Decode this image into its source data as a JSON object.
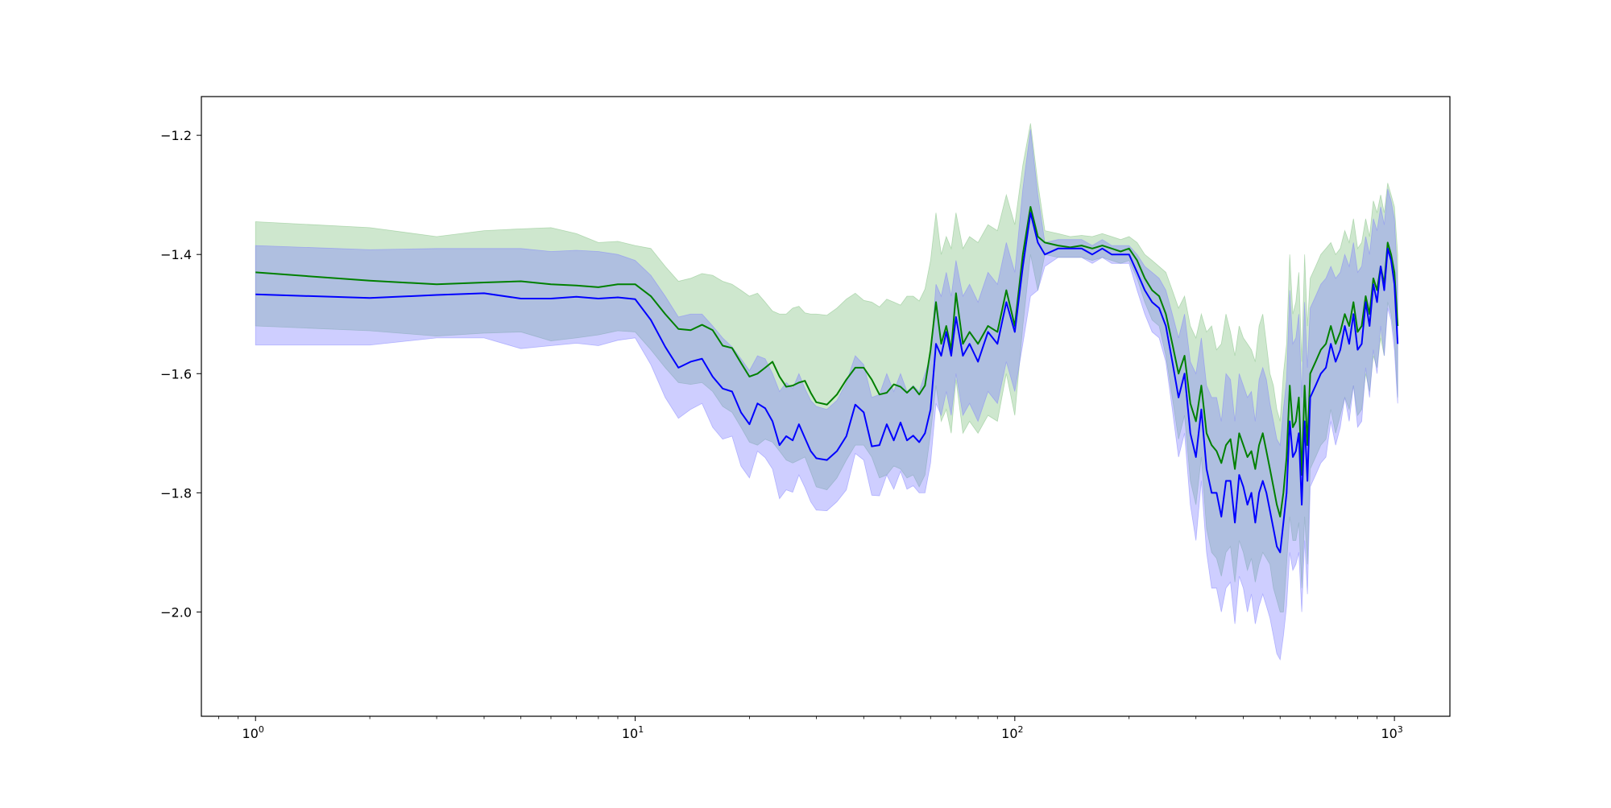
{
  "chart_data": {
    "type": "line",
    "title": "",
    "xlabel": "",
    "ylabel": "",
    "xscale": "log",
    "xlim": [
      0.72,
      1400
    ],
    "ylim": [
      -2.175,
      -1.135
    ],
    "grid": false,
    "legend": "none",
    "x_ticks": [
      {
        "value": 1,
        "base": "10",
        "exp": "0"
      },
      {
        "value": 10,
        "base": "10",
        "exp": "1"
      },
      {
        "value": 100,
        "base": "10",
        "exp": "2"
      },
      {
        "value": 1000,
        "base": "10",
        "exp": "3"
      }
    ],
    "y_ticks": [
      {
        "value": -2.0,
        "label": "−2.0"
      },
      {
        "value": -1.8,
        "label": "−1.8"
      },
      {
        "value": -1.6,
        "label": "−1.6"
      },
      {
        "value": -1.4,
        "label": "−1.4"
      },
      {
        "value": -1.2,
        "label": "−1.2"
      }
    ],
    "series": [
      {
        "color": "#008000",
        "band_color": "#7fbf7f",
        "band_opacity": 0.38,
        "x": [
          1,
          2,
          3,
          4,
          5,
          6,
          7,
          8,
          9,
          10,
          11,
          12,
          13,
          14,
          15,
          16,
          17,
          18,
          19,
          20,
          21,
          22,
          23,
          24,
          25,
          26,
          27,
          28,
          29,
          30,
          32,
          34,
          36,
          38,
          40,
          42,
          44,
          46,
          48,
          50,
          52,
          54,
          56,
          58,
          60,
          62,
          64,
          66,
          68,
          70,
          73,
          76,
          80,
          85,
          90,
          95,
          100,
          105,
          110,
          115,
          120,
          130,
          140,
          150,
          160,
          170,
          180,
          190,
          200,
          210,
          220,
          230,
          240,
          250,
          260,
          270,
          280,
          290,
          300,
          310,
          320,
          330,
          340,
          350,
          360,
          370,
          380,
          390,
          400,
          410,
          420,
          430,
          440,
          450,
          460,
          470,
          480,
          490,
          500,
          510,
          520,
          530,
          540,
          550,
          560,
          570,
          580,
          590,
          600,
          620,
          640,
          660,
          680,
          700,
          720,
          740,
          760,
          780,
          800,
          820,
          840,
          860,
          880,
          900,
          920,
          940,
          960,
          980,
          1000,
          1020
        ],
        "y": [
          -1.43,
          -1.444,
          -1.45,
          -1.447,
          -1.445,
          -1.45,
          -1.452,
          -1.455,
          -1.45,
          -1.45,
          -1.47,
          -1.5,
          -1.525,
          -1.527,
          -1.518,
          -1.527,
          -1.553,
          -1.557,
          -1.582,
          -1.605,
          -1.6,
          -1.59,
          -1.58,
          -1.605,
          -1.622,
          -1.62,
          -1.615,
          -1.612,
          -1.632,
          -1.648,
          -1.652,
          -1.635,
          -1.61,
          -1.59,
          -1.59,
          -1.61,
          -1.635,
          -1.632,
          -1.618,
          -1.622,
          -1.632,
          -1.622,
          -1.635,
          -1.62,
          -1.56,
          -1.48,
          -1.55,
          -1.52,
          -1.56,
          -1.465,
          -1.55,
          -1.53,
          -1.55,
          -1.52,
          -1.53,
          -1.46,
          -1.52,
          -1.4,
          -1.32,
          -1.37,
          -1.38,
          -1.385,
          -1.388,
          -1.385,
          -1.39,
          -1.385,
          -1.39,
          -1.395,
          -1.39,
          -1.41,
          -1.44,
          -1.46,
          -1.47,
          -1.5,
          -1.55,
          -1.6,
          -1.57,
          -1.65,
          -1.68,
          -1.62,
          -1.7,
          -1.72,
          -1.73,
          -1.75,
          -1.72,
          -1.71,
          -1.76,
          -1.7,
          -1.72,
          -1.74,
          -1.73,
          -1.76,
          -1.72,
          -1.7,
          -1.73,
          -1.76,
          -1.79,
          -1.82,
          -1.84,
          -1.8,
          -1.74,
          -1.62,
          -1.69,
          -1.68,
          -1.64,
          -1.77,
          -1.62,
          -1.72,
          -1.6,
          -1.58,
          -1.56,
          -1.55,
          -1.52,
          -1.55,
          -1.53,
          -1.5,
          -1.52,
          -1.48,
          -1.53,
          -1.52,
          -1.47,
          -1.5,
          -1.44,
          -1.46,
          -1.42,
          -1.45,
          -1.38,
          -1.4,
          -1.43,
          -1.52
        ],
        "upper": [
          -1.345,
          -1.355,
          -1.37,
          -1.36,
          -1.357,
          -1.355,
          -1.365,
          -1.38,
          -1.378,
          -1.385,
          -1.39,
          -1.42,
          -1.445,
          -1.44,
          -1.432,
          -1.435,
          -1.445,
          -1.45,
          -1.46,
          -1.47,
          -1.465,
          -1.48,
          -1.495,
          -1.5,
          -1.5,
          -1.49,
          -1.487,
          -1.498,
          -1.5,
          -1.5,
          -1.502,
          -1.49,
          -1.475,
          -1.465,
          -1.477,
          -1.48,
          -1.488,
          -1.475,
          -1.48,
          -1.485,
          -1.47,
          -1.47,
          -1.478,
          -1.458,
          -1.41,
          -1.33,
          -1.4,
          -1.37,
          -1.39,
          -1.33,
          -1.39,
          -1.37,
          -1.38,
          -1.35,
          -1.36,
          -1.3,
          -1.35,
          -1.25,
          -1.18,
          -1.28,
          -1.36,
          -1.365,
          -1.37,
          -1.368,
          -1.37,
          -1.365,
          -1.37,
          -1.375,
          -1.37,
          -1.38,
          -1.4,
          -1.41,
          -1.42,
          -1.43,
          -1.46,
          -1.49,
          -1.47,
          -1.52,
          -1.54,
          -1.5,
          -1.53,
          -1.52,
          -1.56,
          -1.55,
          -1.5,
          -1.53,
          -1.57,
          -1.52,
          -1.54,
          -1.55,
          -1.56,
          -1.58,
          -1.52,
          -1.5,
          -1.55,
          -1.6,
          -1.62,
          -1.66,
          -1.68,
          -1.6,
          -1.55,
          -1.4,
          -1.5,
          -1.48,
          -1.43,
          -1.58,
          -1.4,
          -1.52,
          -1.44,
          -1.42,
          -1.4,
          -1.39,
          -1.38,
          -1.4,
          -1.39,
          -1.36,
          -1.38,
          -1.34,
          -1.39,
          -1.38,
          -1.34,
          -1.37,
          -1.31,
          -1.33,
          -1.3,
          -1.33,
          -1.28,
          -1.3,
          -1.32,
          -1.4
        ],
        "lower": [
          -1.52,
          -1.528,
          -1.537,
          -1.532,
          -1.53,
          -1.545,
          -1.54,
          -1.535,
          -1.528,
          -1.53,
          -1.56,
          -1.59,
          -1.615,
          -1.618,
          -1.615,
          -1.63,
          -1.655,
          -1.665,
          -1.69,
          -1.715,
          -1.72,
          -1.71,
          -1.715,
          -1.73,
          -1.745,
          -1.75,
          -1.745,
          -1.74,
          -1.765,
          -1.79,
          -1.795,
          -1.775,
          -1.745,
          -1.72,
          -1.72,
          -1.74,
          -1.775,
          -1.77,
          -1.755,
          -1.76,
          -1.775,
          -1.77,
          -1.79,
          -1.77,
          -1.7,
          -1.62,
          -1.68,
          -1.66,
          -1.7,
          -1.61,
          -1.7,
          -1.68,
          -1.7,
          -1.67,
          -1.68,
          -1.6,
          -1.67,
          -1.52,
          -1.4,
          -1.46,
          -1.4,
          -1.405,
          -1.405,
          -1.405,
          -1.41,
          -1.405,
          -1.41,
          -1.415,
          -1.41,
          -1.44,
          -1.48,
          -1.51,
          -1.52,
          -1.57,
          -1.64,
          -1.71,
          -1.67,
          -1.78,
          -1.82,
          -1.74,
          -1.86,
          -1.9,
          -1.91,
          -1.94,
          -1.9,
          -1.89,
          -1.95,
          -1.88,
          -1.9,
          -1.93,
          -1.91,
          -1.95,
          -1.92,
          -1.9,
          -1.91,
          -1.92,
          -1.96,
          -1.98,
          -2.0,
          -2.0,
          -1.92,
          -1.84,
          -1.88,
          -1.88,
          -1.85,
          -1.96,
          -1.84,
          -1.92,
          -1.76,
          -1.74,
          -1.72,
          -1.71,
          -1.66,
          -1.7,
          -1.67,
          -1.64,
          -1.66,
          -1.62,
          -1.67,
          -1.66,
          -1.6,
          -1.63,
          -1.57,
          -1.59,
          -1.54,
          -1.57,
          -1.48,
          -1.5,
          -1.54,
          -1.64
        ]
      },
      {
        "color": "#0000ff",
        "band_color": "#7f7fff",
        "band_opacity": 0.38,
        "x": [
          1,
          2,
          3,
          4,
          5,
          6,
          7,
          8,
          9,
          10,
          11,
          12,
          13,
          14,
          15,
          16,
          17,
          18,
          19,
          20,
          21,
          22,
          23,
          24,
          25,
          26,
          27,
          28,
          29,
          30,
          32,
          34,
          36,
          38,
          40,
          42,
          44,
          46,
          48,
          50,
          52,
          54,
          56,
          58,
          60,
          62,
          64,
          66,
          68,
          70,
          73,
          76,
          80,
          85,
          90,
          95,
          100,
          105,
          110,
          115,
          120,
          130,
          140,
          150,
          160,
          170,
          180,
          190,
          200,
          210,
          220,
          230,
          240,
          250,
          260,
          270,
          280,
          290,
          300,
          310,
          320,
          330,
          340,
          350,
          360,
          370,
          380,
          390,
          400,
          410,
          420,
          430,
          440,
          450,
          460,
          470,
          480,
          490,
          500,
          510,
          520,
          530,
          540,
          550,
          560,
          570,
          580,
          590,
          600,
          620,
          640,
          660,
          680,
          700,
          720,
          740,
          760,
          780,
          800,
          820,
          840,
          860,
          880,
          900,
          920,
          940,
          960,
          980,
          1000,
          1020
        ],
        "y": [
          -1.467,
          -1.473,
          -1.468,
          -1.465,
          -1.474,
          -1.474,
          -1.471,
          -1.474,
          -1.472,
          -1.475,
          -1.51,
          -1.555,
          -1.59,
          -1.58,
          -1.575,
          -1.605,
          -1.625,
          -1.63,
          -1.665,
          -1.685,
          -1.65,
          -1.658,
          -1.68,
          -1.72,
          -1.705,
          -1.712,
          -1.685,
          -1.708,
          -1.73,
          -1.742,
          -1.745,
          -1.73,
          -1.705,
          -1.652,
          -1.665,
          -1.722,
          -1.72,
          -1.685,
          -1.712,
          -1.682,
          -1.712,
          -1.704,
          -1.715,
          -1.7,
          -1.66,
          -1.55,
          -1.57,
          -1.53,
          -1.57,
          -1.505,
          -1.57,
          -1.55,
          -1.58,
          -1.53,
          -1.55,
          -1.48,
          -1.53,
          -1.42,
          -1.33,
          -1.38,
          -1.4,
          -1.39,
          -1.39,
          -1.39,
          -1.4,
          -1.39,
          -1.4,
          -1.4,
          -1.4,
          -1.43,
          -1.46,
          -1.48,
          -1.49,
          -1.52,
          -1.58,
          -1.64,
          -1.6,
          -1.7,
          -1.74,
          -1.66,
          -1.76,
          -1.8,
          -1.8,
          -1.84,
          -1.78,
          -1.78,
          -1.85,
          -1.77,
          -1.79,
          -1.82,
          -1.8,
          -1.85,
          -1.8,
          -1.78,
          -1.8,
          -1.83,
          -1.86,
          -1.89,
          -1.9,
          -1.85,
          -1.8,
          -1.68,
          -1.74,
          -1.73,
          -1.7,
          -1.82,
          -1.68,
          -1.78,
          -1.64,
          -1.62,
          -1.6,
          -1.59,
          -1.55,
          -1.58,
          -1.56,
          -1.52,
          -1.55,
          -1.5,
          -1.56,
          -1.55,
          -1.48,
          -1.52,
          -1.45,
          -1.48,
          -1.42,
          -1.46,
          -1.39,
          -1.41,
          -1.45,
          -1.55
        ],
        "upper": [
          -1.385,
          -1.392,
          -1.39,
          -1.39,
          -1.39,
          -1.395,
          -1.393,
          -1.395,
          -1.4,
          -1.41,
          -1.435,
          -1.47,
          -1.505,
          -1.5,
          -1.5,
          -1.52,
          -1.54,
          -1.555,
          -1.575,
          -1.595,
          -1.57,
          -1.575,
          -1.6,
          -1.63,
          -1.615,
          -1.625,
          -1.6,
          -1.625,
          -1.645,
          -1.655,
          -1.66,
          -1.645,
          -1.615,
          -1.57,
          -1.585,
          -1.64,
          -1.635,
          -1.6,
          -1.63,
          -1.6,
          -1.63,
          -1.62,
          -1.63,
          -1.6,
          -1.57,
          -1.45,
          -1.47,
          -1.43,
          -1.47,
          -1.41,
          -1.47,
          -1.45,
          -1.48,
          -1.43,
          -1.45,
          -1.38,
          -1.43,
          -1.29,
          -1.19,
          -1.3,
          -1.38,
          -1.375,
          -1.375,
          -1.375,
          -1.385,
          -1.375,
          -1.385,
          -1.385,
          -1.385,
          -1.4,
          -1.42,
          -1.43,
          -1.44,
          -1.46,
          -1.5,
          -1.54,
          -1.5,
          -1.58,
          -1.6,
          -1.54,
          -1.62,
          -1.64,
          -1.64,
          -1.68,
          -1.6,
          -1.61,
          -1.68,
          -1.6,
          -1.62,
          -1.64,
          -1.63,
          -1.68,
          -1.61,
          -1.59,
          -1.61,
          -1.65,
          -1.68,
          -1.71,
          -1.72,
          -1.66,
          -1.61,
          -1.46,
          -1.55,
          -1.54,
          -1.5,
          -1.64,
          -1.48,
          -1.59,
          -1.49,
          -1.47,
          -1.45,
          -1.44,
          -1.42,
          -1.44,
          -1.43,
          -1.4,
          -1.42,
          -1.38,
          -1.43,
          -1.42,
          -1.37,
          -1.4,
          -1.34,
          -1.36,
          -1.32,
          -1.35,
          -1.29,
          -1.31,
          -1.34,
          -1.45
        ],
        "lower": [
          -1.552,
          -1.552,
          -1.54,
          -1.54,
          -1.558,
          -1.553,
          -1.549,
          -1.553,
          -1.544,
          -1.54,
          -1.585,
          -1.64,
          -1.675,
          -1.66,
          -1.65,
          -1.69,
          -1.71,
          -1.705,
          -1.755,
          -1.775,
          -1.73,
          -1.741,
          -1.76,
          -1.81,
          -1.795,
          -1.799,
          -1.77,
          -1.791,
          -1.815,
          -1.829,
          -1.83,
          -1.815,
          -1.795,
          -1.734,
          -1.745,
          -1.804,
          -1.805,
          -1.77,
          -1.794,
          -1.764,
          -1.794,
          -1.788,
          -1.8,
          -1.8,
          -1.75,
          -1.65,
          -1.67,
          -1.63,
          -1.67,
          -1.6,
          -1.67,
          -1.65,
          -1.68,
          -1.63,
          -1.65,
          -1.58,
          -1.63,
          -1.55,
          -1.47,
          -1.46,
          -1.42,
          -1.405,
          -1.405,
          -1.405,
          -1.415,
          -1.405,
          -1.415,
          -1.415,
          -1.415,
          -1.46,
          -1.5,
          -1.53,
          -1.54,
          -1.58,
          -1.66,
          -1.74,
          -1.7,
          -1.82,
          -1.88,
          -1.78,
          -1.9,
          -1.96,
          -1.96,
          -2.0,
          -1.96,
          -1.95,
          -2.02,
          -1.94,
          -1.96,
          -2.0,
          -1.97,
          -2.02,
          -1.99,
          -1.97,
          -1.99,
          -2.01,
          -2.04,
          -2.07,
          -2.08,
          -2.04,
          -1.99,
          -1.9,
          -1.93,
          -1.92,
          -1.9,
          -2.0,
          -1.88,
          -1.97,
          -1.79,
          -1.77,
          -1.75,
          -1.74,
          -1.68,
          -1.72,
          -1.69,
          -1.64,
          -1.68,
          -1.62,
          -1.69,
          -1.68,
          -1.59,
          -1.64,
          -1.56,
          -1.6,
          -1.52,
          -1.57,
          -1.49,
          -1.51,
          -1.56,
          -1.65
        ]
      }
    ]
  }
}
